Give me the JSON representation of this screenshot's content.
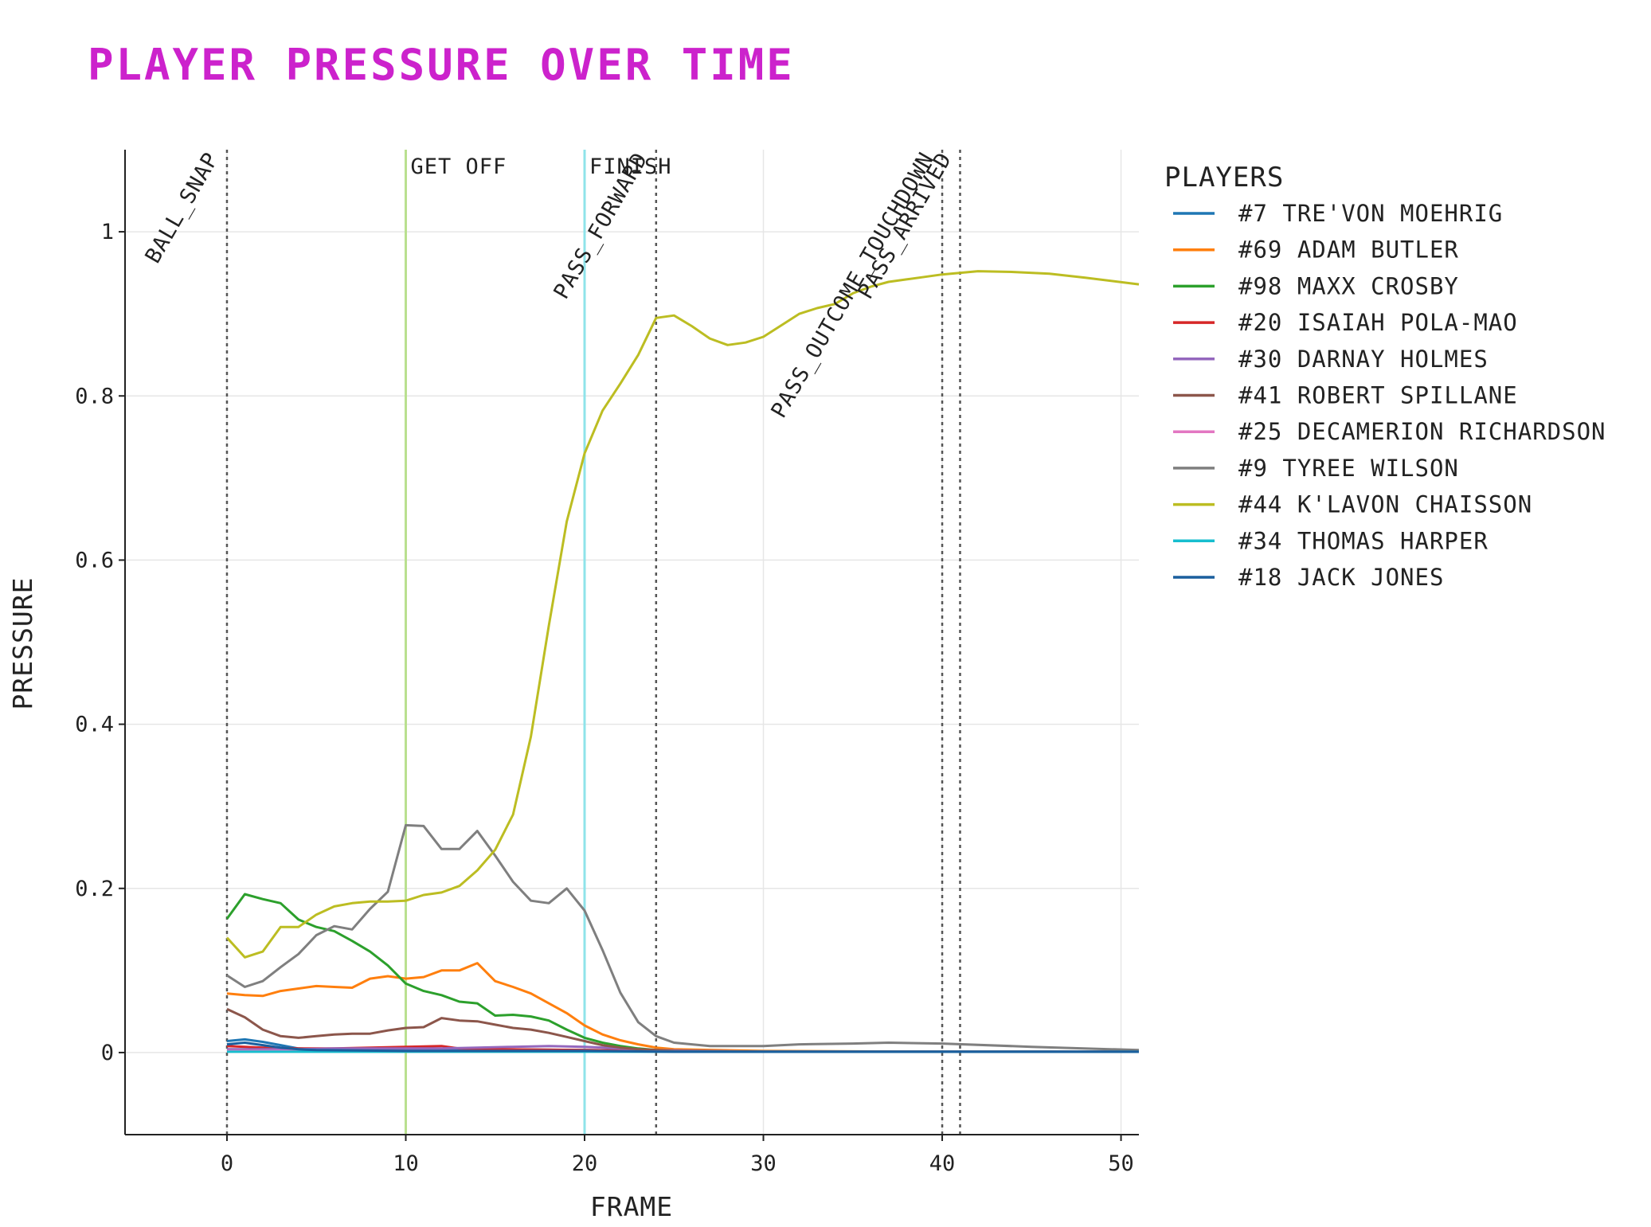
{
  "chart_data": {
    "type": "line",
    "title": "PLAYER PRESSURE OVER TIME",
    "xlabel": "FRAME",
    "ylabel": "PRESSURE",
    "xlim": [
      -5.7,
      51
    ],
    "ylim": [
      -0.1,
      1.1
    ],
    "x_ticks": [
      0,
      10,
      20,
      30,
      40,
      50
    ],
    "y_ticks": [
      0,
      0.2,
      0.4,
      0.6,
      0.8,
      1
    ],
    "y_tick_labels": [
      "0",
      "0.2",
      "0.4",
      "0.6",
      "0.8",
      "1"
    ],
    "grid": true,
    "legend_title": "PLAYERS",
    "legend_position": "right",
    "events": [
      {
        "label": "BALL_SNAP",
        "x": 0,
        "style": "dotted",
        "color": "#555555",
        "rotated": true
      },
      {
        "label": "GET OFF",
        "x": 10,
        "style": "solid",
        "color": "#b9e08f",
        "rotated": false
      },
      {
        "label": "FINISH",
        "x": 20,
        "style": "solid",
        "color": "#8fe3ea",
        "rotated": false
      },
      {
        "label": "PASS_FORWARD",
        "x": 24,
        "style": "dotted",
        "color": "#555555",
        "rotated": true
      },
      {
        "label": "PASS_OUTCOME_TOUCHDOWN",
        "x": 40,
        "style": "dotted",
        "color": "#555555",
        "rotated": true
      },
      {
        "label": "PASS_ARRIVED",
        "x": 41,
        "style": "dotted",
        "color": "#555555",
        "rotated": true
      }
    ],
    "series": [
      {
        "name": "#7 TRE'VON MOEHRIG",
        "color": "#1f77b4",
        "x": [
          0,
          1,
          2,
          3,
          4,
          6,
          10,
          15,
          20,
          24,
          30,
          40,
          51
        ],
        "y": [
          0.014,
          0.016,
          0.013,
          0.009,
          0.005,
          0.004,
          0.004,
          0.004,
          0.003,
          0.002,
          0.001,
          0.001,
          0.001
        ]
      },
      {
        "name": "#69 ADAM BUTLER",
        "color": "#ff7f0e",
        "x": [
          0,
          1,
          2,
          3,
          4,
          5,
          6,
          7,
          8,
          9,
          10,
          11,
          12,
          13,
          14,
          15,
          16,
          17,
          18,
          19,
          20,
          21,
          22,
          23,
          24,
          25,
          30,
          40,
          51
        ],
        "y": [
          0.072,
          0.07,
          0.069,
          0.075,
          0.078,
          0.081,
          0.08,
          0.079,
          0.09,
          0.093,
          0.09,
          0.092,
          0.1,
          0.1,
          0.109,
          0.087,
          0.08,
          0.072,
          0.06,
          0.048,
          0.033,
          0.022,
          0.015,
          0.01,
          0.006,
          0.004,
          0.002,
          0.001,
          0.001
        ]
      },
      {
        "name": "#98 MAXX CROSBY",
        "color": "#2ca02c",
        "x": [
          0,
          1,
          2,
          3,
          4,
          5,
          6,
          7,
          8,
          9,
          10,
          11,
          12,
          13,
          14,
          15,
          16,
          17,
          18,
          19,
          20,
          21,
          22,
          23,
          24,
          25,
          30,
          40,
          51
        ],
        "y": [
          0.163,
          0.193,
          0.187,
          0.182,
          0.162,
          0.153,
          0.148,
          0.136,
          0.123,
          0.106,
          0.084,
          0.075,
          0.07,
          0.062,
          0.06,
          0.045,
          0.046,
          0.044,
          0.039,
          0.028,
          0.018,
          0.012,
          0.008,
          0.005,
          0.003,
          0.002,
          0.001,
          0.001,
          0.001
        ]
      },
      {
        "name": "#20 ISAIAH POLA-MAO",
        "color": "#d62728",
        "x": [
          0,
          2,
          4,
          6,
          8,
          10,
          12,
          13,
          15,
          20,
          25,
          30,
          40,
          51
        ],
        "y": [
          0.008,
          0.006,
          0.005,
          0.005,
          0.006,
          0.007,
          0.008,
          0.005,
          0.004,
          0.003,
          0.002,
          0.001,
          0.001,
          0.001
        ]
      },
      {
        "name": "#30 DARNAY HOLMES",
        "color": "#9467bd",
        "x": [
          0,
          2,
          4,
          6,
          8,
          10,
          12,
          14,
          16,
          18,
          20,
          22,
          24,
          30,
          40,
          51
        ],
        "y": [
          0.004,
          0.004,
          0.004,
          0.005,
          0.005,
          0.005,
          0.005,
          0.006,
          0.007,
          0.008,
          0.007,
          0.005,
          0.003,
          0.001,
          0.001,
          0.001
        ]
      },
      {
        "name": "#41 ROBERT SPILLANE",
        "color": "#8c564b",
        "x": [
          0,
          1,
          2,
          3,
          4,
          5,
          6,
          7,
          8,
          9,
          10,
          11,
          12,
          13,
          14,
          15,
          16,
          17,
          18,
          19,
          20,
          21,
          22,
          23,
          24,
          25,
          30,
          40,
          51
        ],
        "y": [
          0.053,
          0.043,
          0.028,
          0.02,
          0.018,
          0.02,
          0.022,
          0.023,
          0.023,
          0.027,
          0.03,
          0.031,
          0.042,
          0.039,
          0.038,
          0.034,
          0.03,
          0.028,
          0.024,
          0.019,
          0.014,
          0.009,
          0.006,
          0.004,
          0.003,
          0.002,
          0.001,
          0.001,
          0.001
        ]
      },
      {
        "name": "#25 DECAMERION RICHARDSON",
        "color": "#e377c2",
        "x": [
          0,
          5,
          10,
          15,
          20,
          25,
          30,
          40,
          51
        ],
        "y": [
          0.002,
          0.002,
          0.002,
          0.002,
          0.002,
          0.001,
          0.001,
          0.001,
          0.001
        ]
      },
      {
        "name": "#9 TYREE WILSON",
        "color": "#7f7f7f",
        "x": [
          0,
          1,
          2,
          3,
          4,
          5,
          6,
          7,
          8,
          9,
          10,
          11,
          12,
          13,
          14,
          15,
          16,
          17,
          18,
          19,
          20,
          21,
          22,
          23,
          24,
          25,
          27,
          30,
          32,
          35,
          37,
          40,
          45,
          51
        ],
        "y": [
          0.094,
          0.08,
          0.087,
          0.104,
          0.12,
          0.143,
          0.154,
          0.15,
          0.175,
          0.196,
          0.277,
          0.276,
          0.248,
          0.248,
          0.27,
          0.24,
          0.208,
          0.185,
          0.182,
          0.2,
          0.173,
          0.125,
          0.073,
          0.037,
          0.02,
          0.012,
          0.008,
          0.008,
          0.01,
          0.011,
          0.012,
          0.011,
          0.007,
          0.003
        ]
      },
      {
        "name": "#44 K'LAVON CHAISSON",
        "color": "#bcbd22",
        "x": [
          0,
          1,
          2,
          3,
          4,
          5,
          6,
          7,
          8,
          9,
          10,
          11,
          12,
          13,
          14,
          15,
          16,
          17,
          18,
          19,
          20,
          21,
          22,
          23,
          24,
          25,
          26,
          27,
          28,
          29,
          30,
          31,
          32,
          33,
          34,
          35,
          36,
          37,
          38,
          39,
          40,
          42,
          44,
          46,
          48,
          51
        ],
        "y": [
          0.14,
          0.116,
          0.123,
          0.153,
          0.153,
          0.168,
          0.178,
          0.182,
          0.184,
          0.184,
          0.185,
          0.192,
          0.195,
          0.203,
          0.222,
          0.247,
          0.29,
          0.385,
          0.52,
          0.647,
          0.73,
          0.782,
          0.815,
          0.85,
          0.895,
          0.898,
          0.885,
          0.87,
          0.862,
          0.865,
          0.872,
          0.886,
          0.9,
          0.907,
          0.912,
          0.925,
          0.933,
          0.939,
          0.942,
          0.945,
          0.948,
          0.952,
          0.951,
          0.949,
          0.944,
          0.936
        ]
      },
      {
        "name": "#34 THOMAS HARPER",
        "color": "#17becf",
        "x": [
          0,
          5,
          10,
          15,
          20,
          25,
          30,
          40,
          51
        ],
        "y": [
          0.001,
          0.001,
          0.001,
          0.001,
          0.001,
          0.001,
          0.001,
          0.001,
          0.001
        ]
      },
      {
        "name": "#18 JACK JONES",
        "color": "#1a5f9e",
        "x": [
          0,
          1,
          2,
          3,
          4,
          5,
          10,
          15,
          20,
          25,
          30,
          40,
          51
        ],
        "y": [
          0.01,
          0.012,
          0.009,
          0.006,
          0.004,
          0.003,
          0.002,
          0.002,
          0.002,
          0.001,
          0.001,
          0.001,
          0.001
        ]
      }
    ]
  }
}
